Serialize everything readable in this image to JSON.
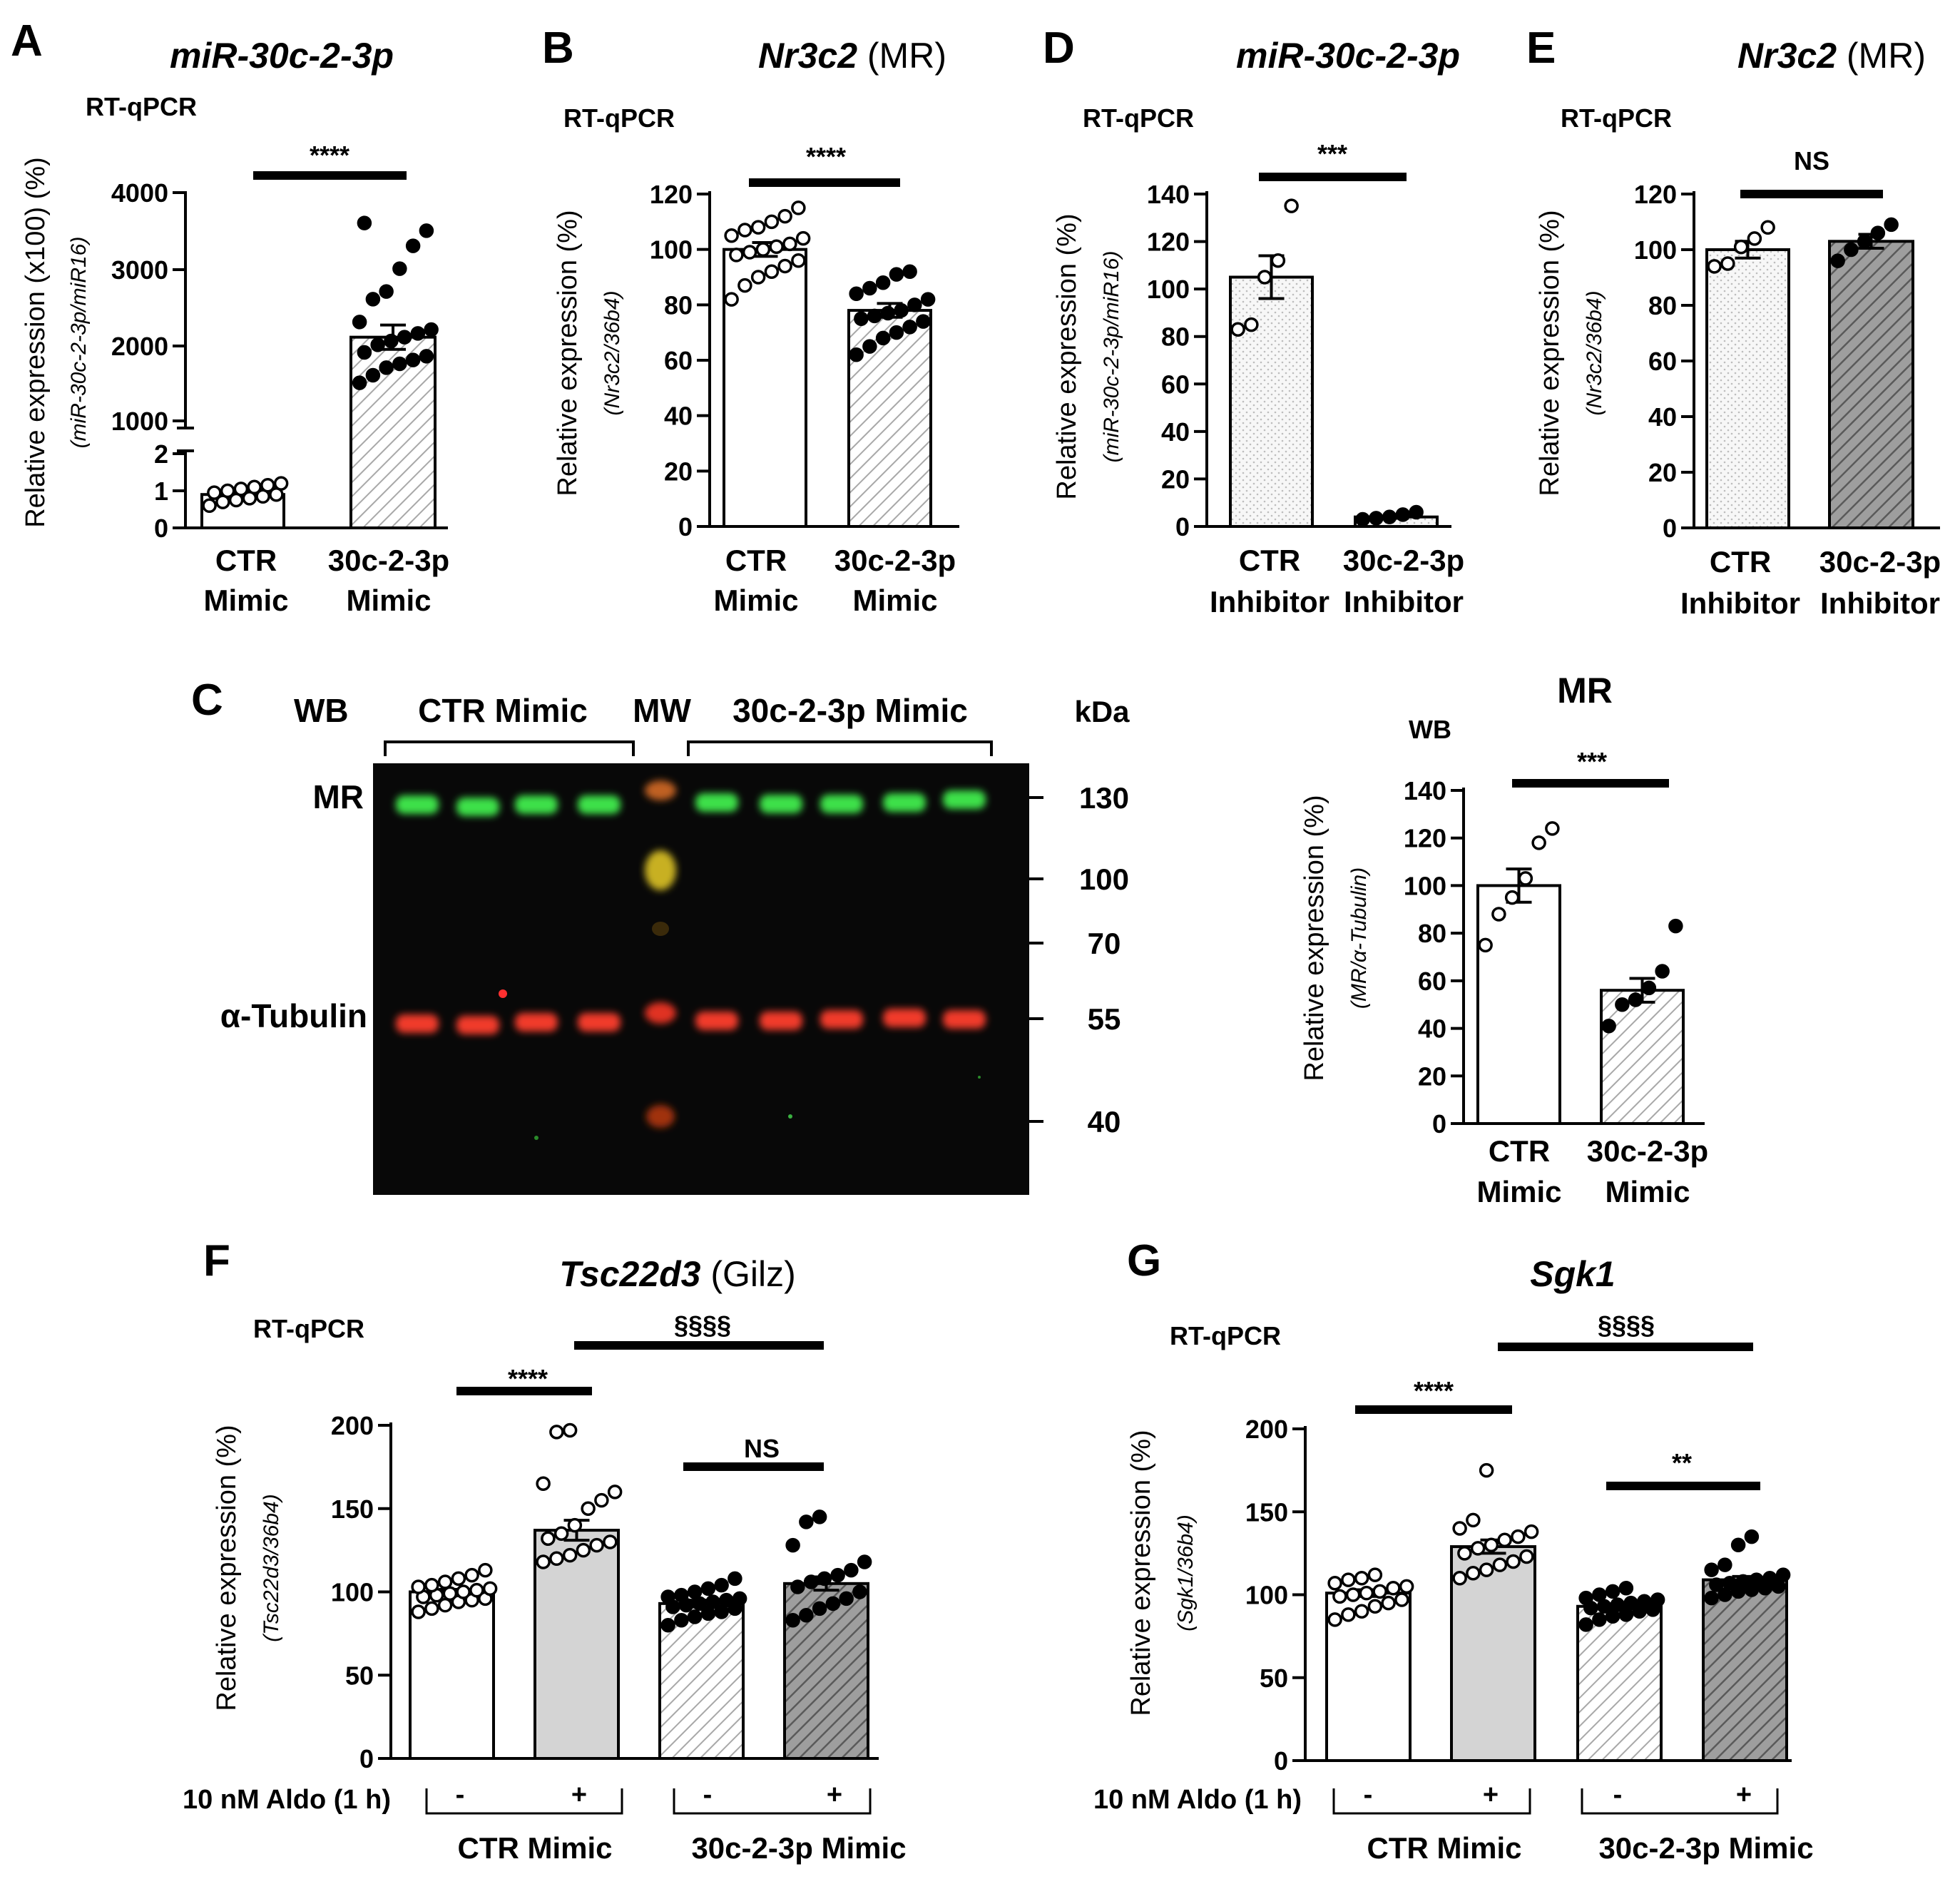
{
  "figure": {
    "blot": {
      "panel_label": "C",
      "method_label": "WB",
      "group1_label": "CTR Mimic",
      "mw_label": "MW",
      "group2_label": "30c-2-3p Mimic",
      "kda_label": "kDa",
      "mr_row_label": "MR",
      "tubulin_row_label": "α-Tubulin",
      "mw_markers": [
        "130",
        "100",
        "70",
        "55",
        "40"
      ],
      "band_colors": {
        "mr": "#3ee04a",
        "tubulin": "#f03a2a",
        "background": "#080808"
      }
    }
  },
  "chart_data": [
    {
      "id": "A",
      "panel_label": "A",
      "type": "bar",
      "title": "miR-30c-2-3p",
      "method": "RT-qPCR",
      "ylabel": "Relative expression (x100) (%)",
      "ylabel_sub": "(miR-30c-2-3p/miR16)",
      "yaxis_broken": true,
      "ylim_lower": [
        0,
        2
      ],
      "ylim_upper": [
        1000,
        4000
      ],
      "yticks": [
        "0",
        "1",
        "2",
        "1000",
        "2000",
        "3000",
        "4000"
      ],
      "categories": [
        [
          "CTR",
          "Mimic"
        ],
        [
          "30c-2-3p",
          "Mimic"
        ]
      ],
      "values": [
        0.9,
        2100
      ],
      "sem": [
        0.07,
        160
      ],
      "points": [
        [
          0.6,
          0.7,
          0.75,
          0.8,
          0.85,
          0.9,
          0.95,
          1.0,
          1.05,
          1.1,
          1.15,
          1.2
        ],
        [
          1500,
          1600,
          1700,
          1750,
          1800,
          1850,
          1900,
          2000,
          2050,
          2100,
          2150,
          2200,
          2300,
          2600,
          2700,
          3000,
          3300,
          3500,
          3600
        ]
      ],
      "comparisons": [
        {
          "label": "****"
        }
      ]
    },
    {
      "id": "B",
      "panel_label": "B",
      "type": "bar",
      "title": "Nr3c2",
      "title_suffix": " (MR)",
      "method": "RT-qPCR",
      "ylabel": "Relative expression (%)",
      "ylabel_sub": "(Nr3c2/36b4)",
      "ylim": [
        0,
        120
      ],
      "yticks": [
        "0",
        "20",
        "40",
        "60",
        "80",
        "100",
        "120"
      ],
      "categories": [
        [
          "CTR",
          "Mimic"
        ],
        [
          "30c-2-3p",
          "Mimic"
        ]
      ],
      "values": [
        100,
        78
      ],
      "sem": [
        2.5,
        2.5
      ],
      "points": [
        [
          82,
          87,
          90,
          92,
          94,
          96,
          98,
          99,
          100,
          101,
          102,
          104,
          105,
          107,
          108,
          110,
          112,
          115
        ],
        [
          62,
          65,
          68,
          70,
          72,
          74,
          75,
          76,
          77,
          78,
          80,
          82,
          84,
          86,
          88,
          91,
          92
        ]
      ],
      "comparisons": [
        {
          "label": "****"
        }
      ]
    },
    {
      "id": "D",
      "panel_label": "D",
      "type": "bar",
      "title": "miR-30c-2-3p",
      "method": "RT-qPCR",
      "ylabel": "Relative expression (%)",
      "ylabel_sub": "(miR-30c-2-3p/miR16)",
      "ylim": [
        0,
        140
      ],
      "yticks": [
        "0",
        "20",
        "40",
        "60",
        "80",
        "100",
        "120",
        "140"
      ],
      "categories": [
        [
          "CTR",
          "Inhibitor"
        ],
        [
          "30c-2-3p",
          "Inhibitor"
        ]
      ],
      "values": [
        105,
        4
      ],
      "sem": [
        9,
        0.5
      ],
      "points": [
        [
          83,
          85,
          105,
          112,
          135
        ],
        [
          3,
          3.5,
          4,
          5,
          6
        ]
      ],
      "comparisons": [
        {
          "label": "***"
        }
      ]
    },
    {
      "id": "E",
      "panel_label": "E",
      "type": "bar",
      "title": "Nr3c2",
      "title_suffix": " (MR)",
      "method": "RT-qPCR",
      "ylabel": "Relative expression (%)",
      "ylabel_sub": "(Nr3c2/36b4)",
      "ylim": [
        0,
        120
      ],
      "yticks": [
        "0",
        "20",
        "40",
        "60",
        "80",
        "100",
        "120"
      ],
      "categories": [
        [
          "CTR",
          "Inhibitor"
        ],
        [
          "30c-2-3p",
          "Inhibitor"
        ]
      ],
      "values": [
        100,
        103
      ],
      "sem": [
        3,
        2.5
      ],
      "points": [
        [
          94,
          95,
          101,
          104,
          108
        ],
        [
          96,
          100,
          103,
          106,
          109
        ]
      ],
      "comparisons": [
        {
          "label": "NS"
        }
      ]
    },
    {
      "id": "C2",
      "type": "bar",
      "title": "MR",
      "method": "WB",
      "ylabel": "Relative expression (%)",
      "ylabel_sub": "(MR/α-Tubulin)",
      "ylim": [
        0,
        140
      ],
      "yticks": [
        "0",
        "20",
        "40",
        "60",
        "80",
        "100",
        "120",
        "140"
      ],
      "categories": [
        [
          "CTR",
          "Mimic"
        ],
        [
          "30c-2-3p",
          "Mimic"
        ]
      ],
      "values": [
        100,
        56
      ],
      "sem": [
        7,
        5
      ],
      "points": [
        [
          75,
          88,
          95,
          103,
          118,
          124
        ],
        [
          41,
          50,
          52,
          57,
          64,
          83
        ]
      ],
      "comparisons": [
        {
          "label": "***"
        }
      ]
    },
    {
      "id": "F",
      "panel_label": "F",
      "type": "bar",
      "title": "Tsc22d3",
      "title_suffix": " (Gilz)",
      "method": "RT-qPCR",
      "ylabel": "Relative expression (%)",
      "ylabel_sub": "(Tsc22d3/36b4)",
      "ylim": [
        0,
        200
      ],
      "yticks": [
        "0",
        "50",
        "100",
        "150",
        "200"
      ],
      "treatment_label": "10 nM Aldo (1 h)",
      "treatment_signs": [
        "-",
        "+",
        "-",
        "+"
      ],
      "group_labels": [
        "CTR Mimic",
        "30c-2-3p Mimic"
      ],
      "values": [
        100,
        137,
        93,
        105
      ],
      "sem": [
        1.5,
        6,
        2,
        4
      ],
      "points": [
        [
          88,
          90,
          92,
          94,
          95,
          96,
          97,
          98,
          99,
          100,
          101,
          102,
          103,
          104,
          106,
          108,
          110,
          113
        ],
        [
          118,
          120,
          122,
          125,
          128,
          130,
          132,
          135,
          140,
          150,
          155,
          160,
          165,
          196,
          197
        ],
        [
          80,
          83,
          85,
          87,
          88,
          90,
          91,
          92,
          93,
          94,
          95,
          96,
          97,
          98,
          100,
          102,
          104,
          108
        ],
        [
          83,
          86,
          90,
          93,
          96,
          100,
          103,
          106,
          108,
          110,
          113,
          118,
          128,
          142,
          145
        ]
      ],
      "comparisons": [
        {
          "label": "****"
        },
        {
          "label": "§§§§"
        },
        {
          "label": "NS"
        }
      ]
    },
    {
      "id": "G",
      "panel_label": "G",
      "type": "bar",
      "title": "Sgk1",
      "method": "RT-qPCR",
      "ylabel": "Relative expression (%)",
      "ylabel_sub": "(Sgk1/36b4)",
      "ylim": [
        0,
        200
      ],
      "yticks": [
        "0",
        "50",
        "100",
        "150",
        "200"
      ],
      "treatment_label": "10 nM Aldo (1 h)",
      "treatment_signs": [
        "-",
        "+",
        "-",
        "+"
      ],
      "group_labels": [
        "CTR Mimic",
        "30c-2-3p Mimic"
      ],
      "values": [
        101,
        129,
        93,
        109
      ],
      "sem": [
        2,
        4,
        1.5,
        2
      ],
      "points": [
        [
          85,
          88,
          90,
          93,
          95,
          97,
          99,
          100,
          101,
          102,
          104,
          105,
          107,
          109,
          110,
          112
        ],
        [
          110,
          113,
          115,
          118,
          120,
          123,
          125,
          128,
          130,
          133,
          135,
          138,
          140,
          145,
          175
        ],
        [
          82,
          85,
          87,
          88,
          90,
          91,
          92,
          93,
          94,
          95,
          96,
          97,
          98,
          100,
          102,
          104
        ],
        [
          98,
          100,
          102,
          103,
          104,
          105,
          106,
          107,
          108,
          109,
          110,
          112,
          115,
          118,
          130,
          135
        ]
      ],
      "comparisons": [
        {
          "label": "****"
        },
        {
          "label": "§§§§"
        },
        {
          "label": "**"
        }
      ]
    }
  ]
}
